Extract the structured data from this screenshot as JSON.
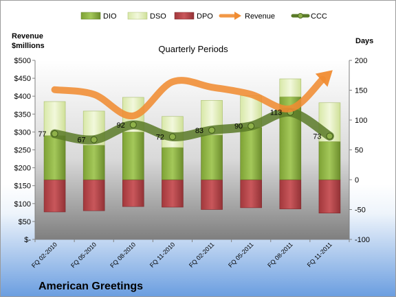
{
  "company": "American Greetings",
  "chart_data": {
    "type": "bar",
    "title": "Quarterly Periods",
    "left_axis": {
      "title_line1": "Revenue",
      "title_line2": "$millions",
      "ylim": [
        0,
        500
      ],
      "ticks": [
        "$-",
        "$50",
        "$100",
        "$150",
        "$200",
        "$250",
        "$300",
        "$350",
        "$400",
        "$450",
        "$500"
      ]
    },
    "right_axis": {
      "title": "Days",
      "ylim": [
        -100,
        200
      ],
      "ticks": [
        "-100",
        "-50",
        "0",
        "50",
        "100",
        "150",
        "200"
      ]
    },
    "categories": [
      "FQ 02-2010",
      "FQ 05-2010",
      "FQ 08-2010",
      "FQ 11-2010",
      "FQ 02-2011",
      "FQ 05-2011",
      "FQ 08-2011",
      "FQ 11-2011"
    ],
    "legend": [
      "DIO",
      "DSO",
      "DPO",
      "Revenue",
      "CCC"
    ],
    "series": [
      {
        "name": "DIO",
        "axis": "days",
        "values": [
          74,
          58,
          80,
          54,
          75,
          88,
          139,
          64
        ]
      },
      {
        "name": "DSO",
        "axis": "days",
        "values": [
          57,
          57,
          58,
          52,
          58,
          53,
          30,
          65
        ]
      },
      {
        "name": "DPO",
        "axis": "days",
        "values": [
          -54,
          -52,
          -45,
          -46,
          -50,
          -47,
          -49,
          -56
        ]
      },
      {
        "name": "Revenue",
        "axis": "revenue",
        "values": [
          418,
          405,
          345,
          440,
          425,
          405,
          365,
          465
        ]
      },
      {
        "name": "CCC",
        "axis": "days",
        "values": [
          77,
          67,
          92,
          72,
          83,
          90,
          113,
          73
        ]
      }
    ],
    "ccc_labels": [
      "77",
      "67",
      "92",
      "72",
      "83",
      "90",
      "113",
      "73"
    ],
    "grid": false,
    "legend_position": "top",
    "colors": {
      "DIO": "#8db43e",
      "DSO": "#e2efbf",
      "DPO": "#b54246",
      "Revenue": "#f08c32",
      "CCC": "#5a7a28"
    }
  }
}
